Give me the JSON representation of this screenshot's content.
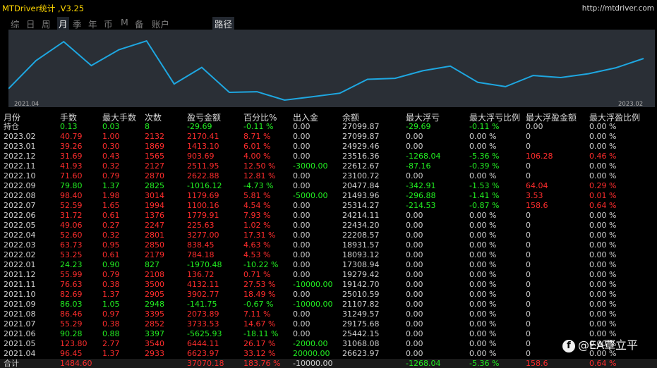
{
  "title": "MTDriver统计 ,V3.25",
  "url": "http://mtdriver.com",
  "tabs": [
    "综",
    "日",
    "周",
    "月",
    "季",
    "年",
    "币",
    "M",
    "备",
    "账户"
  ],
  "active_tab": "月",
  "path_tab": "路径",
  "chart": {
    "x_start": "2021.04",
    "x_end": "2023.02",
    "line_color": "#1ea7e1",
    "bg_color": "#2a2f36"
  },
  "headers": [
    "月份",
    "手数",
    "最大手数",
    "次数",
    "盈亏金额",
    "百分比%",
    "出入金",
    "余额",
    "最大浮亏",
    "最大浮亏比例",
    "最大浮盈金额",
    "最大浮盈比例"
  ],
  "rows": [
    [
      "持仓",
      "0.13",
      "0.03",
      "8",
      "-29.69",
      "-0.11 %",
      "0.00",
      "27099.87",
      "-29.69",
      "-0.11 %",
      "0.00",
      "0.00 %"
    ],
    [
      "2023.02",
      "40.79",
      "1.00",
      "2132",
      "2170.41",
      "8.71 %",
      "0.00",
      "27099.87",
      "0.00",
      "0.00 %",
      "0",
      "0.00 %"
    ],
    [
      "2023.01",
      "39.26",
      "0.30",
      "1869",
      "1413.10",
      "6.01 %",
      "0.00",
      "24929.46",
      "0.00",
      "0.00 %",
      "0",
      "0.00 %"
    ],
    [
      "2022.12",
      "31.69",
      "0.43",
      "1565",
      "903.69",
      "4.00 %",
      "0.00",
      "23516.36",
      "-1268.04",
      "-5.36 %",
      "106.28",
      "0.46 %"
    ],
    [
      "2022.11",
      "41.93",
      "0.32",
      "2127",
      "2511.95",
      "12.50 %",
      "-3000.00",
      "22612.67",
      "-87.16",
      "-0.39 %",
      "0",
      "0.00 %"
    ],
    [
      "2022.10",
      "71.60",
      "0.79",
      "2870",
      "2622.88",
      "12.81 %",
      "0.00",
      "23100.72",
      "0.00",
      "0.00 %",
      "0",
      "0.00 %"
    ],
    [
      "2022.09",
      "79.80",
      "1.37",
      "2825",
      "-1016.12",
      "-4.73 %",
      "0.00",
      "20477.84",
      "-342.91",
      "-1.53 %",
      "64.04",
      "0.29 %"
    ],
    [
      "2022.08",
      "98.40",
      "1.98",
      "3014",
      "1179.69",
      "5.81 %",
      "-5000.00",
      "21493.96",
      "-296.88",
      "-1.41 %",
      "3.53",
      "0.01 %"
    ],
    [
      "2022.07",
      "52.59",
      "1.65",
      "1994",
      "1100.16",
      "4.54 %",
      "0.00",
      "25314.27",
      "-214.53",
      "-0.87 %",
      "158.6",
      "0.64 %"
    ],
    [
      "2022.06",
      "31.72",
      "0.61",
      "1376",
      "1779.91",
      "7.93 %",
      "0.00",
      "24214.11",
      "0.00",
      "0.00 %",
      "0",
      "0.00 %"
    ],
    [
      "2022.05",
      "49.06",
      "0.27",
      "2247",
      "225.63",
      "1.02 %",
      "0.00",
      "22434.20",
      "0.00",
      "0.00 %",
      "0",
      "0.00 %"
    ],
    [
      "2022.04",
      "52.60",
      "0.32",
      "2801",
      "3277.00",
      "17.31 %",
      "0.00",
      "22208.57",
      "0.00",
      "0.00 %",
      "0",
      "0.00 %"
    ],
    [
      "2022.03",
      "63.73",
      "0.95",
      "2850",
      "838.45",
      "4.63 %",
      "0.00",
      "18931.57",
      "0.00",
      "0.00 %",
      "0",
      "0.00 %"
    ],
    [
      "2022.02",
      "53.25",
      "0.61",
      "2179",
      "784.18",
      "4.53 %",
      "0.00",
      "18093.12",
      "0.00",
      "0.00 %",
      "0",
      "0.00 %"
    ],
    [
      "2022.01",
      "24.23",
      "0.90",
      "827",
      "-1970.48",
      "-10.22 %",
      "0.00",
      "17308.94",
      "0.00",
      "0.00 %",
      "0",
      "0.00 %"
    ],
    [
      "2021.12",
      "55.99",
      "0.79",
      "2108",
      "136.72",
      "0.71 %",
      "0.00",
      "19279.42",
      "0.00",
      "0.00 %",
      "0",
      "0.00 %"
    ],
    [
      "2021.11",
      "76.63",
      "0.38",
      "3500",
      "4132.11",
      "27.53 %",
      "-10000.00",
      "19142.70",
      "0.00",
      "0.00 %",
      "0",
      "0.00 %"
    ],
    [
      "2021.10",
      "82.69",
      "1.37",
      "2905",
      "3902.77",
      "18.49 %",
      "0.00",
      "25010.59",
      "0.00",
      "0.00 %",
      "0",
      "0.00 %"
    ],
    [
      "2021.09",
      "86.03",
      "1.05",
      "2948",
      "-141.75",
      "-0.67 %",
      "-10000.00",
      "21107.82",
      "0.00",
      "0.00 %",
      "0",
      "0.00 %"
    ],
    [
      "2021.08",
      "86.46",
      "0.97",
      "3395",
      "2073.89",
      "7.11 %",
      "0.00",
      "31249.57",
      "0.00",
      "0.00 %",
      "0",
      "0.00 %"
    ],
    [
      "2021.07",
      "55.29",
      "0.38",
      "2852",
      "3733.53",
      "14.67 %",
      "0.00",
      "29175.68",
      "0.00",
      "0.00 %",
      "0",
      "0.00 %"
    ],
    [
      "2021.06",
      "90.28",
      "0.88",
      "3397",
      "-5625.93",
      "-18.11 %",
      "0.00",
      "25442.15",
      "0.00",
      "0.00 %",
      "0",
      "0.00 %"
    ],
    [
      "2021.05",
      "123.80",
      "2.77",
      "3540",
      "6444.11",
      "26.17 %",
      "-2000.00",
      "31068.08",
      "0.00",
      "0.00 %",
      "0",
      "0.00 %"
    ],
    [
      "2021.04",
      "96.45",
      "1.37",
      "2933",
      "6623.97",
      "33.12 %",
      "20000.00",
      "26623.97",
      "0.00",
      "0.00 %",
      "0",
      "0.00 %"
    ]
  ],
  "row_colors": [
    "g",
    "r",
    "r",
    "r",
    "r",
    "r",
    "g",
    "r",
    "r",
    "r",
    "r",
    "r",
    "r",
    "r",
    "g",
    "r",
    "r",
    "r",
    "g",
    "r",
    "r",
    "g",
    "r",
    "r"
  ],
  "total": [
    "合计",
    "1484.60",
    "",
    "",
    "37070.18",
    "183.76 %",
    "-10000.00",
    "",
    "-1268.04",
    "-5.36 %",
    "158.6",
    "0.64 %"
  ],
  "watermark": "@EA覃立平",
  "colors": {
    "up": "#ff2d2d",
    "down": "#22ee22",
    "neutral": "#d0d0d0",
    "title": "#ffd700"
  }
}
